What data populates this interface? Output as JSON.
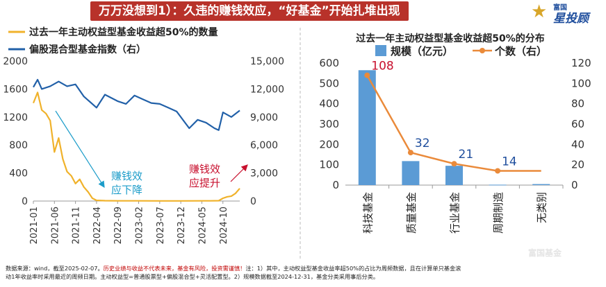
{
  "header": {
    "title": "万万没想到1）：久违的赚钱效应，“好基金”开始扎堆出现",
    "logo_line1": "富国",
    "logo_line2": "星投顾",
    "logo_icon": "star-icon"
  },
  "watermark": "富国基金",
  "colors": {
    "accent": "#b8322a",
    "gold": "#f0b22b",
    "navy": "#2160a8",
    "bar": "#5b9bd5",
    "line": "#ea8a3a",
    "annot_blue": "#1b9cc9",
    "annot_red": "#c8102e"
  },
  "chart_data": [
    {
      "type": "line",
      "title": "",
      "series": [
        {
          "name": "过去一年主动权益型基金收益超50%的数量",
          "axis": "left",
          "color": "#f0b22b",
          "x": [
            "2021-01",
            "2021-02",
            "2021-03",
            "2021-04",
            "2021-05",
            "2021-06",
            "2021-07",
            "2021-08",
            "2021-09",
            "2021-10",
            "2021-11",
            "2021-12",
            "2022-01",
            "2022-02",
            "2022-03",
            "2022-04",
            "2022-06",
            "2022-09",
            "2023-02",
            "2023-07",
            "2023-12",
            "2024-05",
            "2024-07",
            "2024-09",
            "2024-10",
            "2024-11",
            "2024-12",
            "2025-01",
            "2025-02"
          ],
          "values": [
            1400,
            1550,
            1300,
            1250,
            1150,
            700,
            900,
            600,
            420,
            360,
            250,
            310,
            200,
            130,
            40,
            10,
            5,
            3,
            3,
            2,
            2,
            3,
            3,
            5,
            40,
            60,
            70,
            110,
            180
          ]
        },
        {
          "name": "偏股混合型基金指数（右）",
          "axis": "right",
          "color": "#2160a8",
          "x": [
            "2021-01",
            "2021-02",
            "2021-03",
            "2021-05",
            "2021-07",
            "2021-09",
            "2021-11",
            "2022-01",
            "2022-04",
            "2022-06",
            "2022-09",
            "2022-11",
            "2023-01",
            "2023-03",
            "2023-05",
            "2023-07",
            "2023-09",
            "2023-11",
            "2024-01",
            "2024-02",
            "2024-04",
            "2024-06",
            "2024-08",
            "2024-09",
            "2024-10",
            "2024-12",
            "2025-02"
          ],
          "values": [
            12200,
            13000,
            12000,
            12300,
            12800,
            12300,
            12500,
            11200,
            10000,
            11400,
            10700,
            10400,
            11300,
            10900,
            10500,
            10400,
            10000,
            9600,
            8400,
            7800,
            8700,
            8400,
            7800,
            7600,
            9500,
            9000,
            9700
          ]
        }
      ],
      "x_ticks": [
        "2021-01",
        "2021-06",
        "2021-11",
        "2022-04",
        "2022-09",
        "2023-02",
        "2023-07",
        "2023-12",
        "2024-05",
        "2024-10"
      ],
      "y_left": {
        "ticks": [
          0,
          400,
          800,
          1200,
          1600,
          2000
        ],
        "ylim": [
          0,
          2000
        ]
      },
      "y_right": {
        "ticks": [
          0,
          3000,
          6000,
          9000,
          12000,
          15000
        ],
        "tick_labels": [
          "0",
          "3,000",
          "6,000",
          "9,000",
          "12,000",
          "15,000"
        ],
        "ylim": [
          0,
          15000
        ]
      },
      "annotations": [
        {
          "text": "赚钱效应下降",
          "line1": "赚钱效",
          "line2": "应下降",
          "color": "#1b9cc9"
        },
        {
          "text": "赚钱效应提升",
          "line1": "赚钱效",
          "line2": "应提升",
          "color": "#c8102e"
        }
      ],
      "legend_placement": "top-left",
      "grid": false
    },
    {
      "type": "bar",
      "title": "过去一年主动权益型基金收益超50%的分布",
      "categories": [
        "科技基金",
        "质量基金",
        "行业基金",
        "周期制造",
        "无类别"
      ],
      "series": [
        {
          "name": "规模（亿元）",
          "type": "bar",
          "axis": "left",
          "color": "#5b9bd5",
          "values": [
            565,
            118,
            95,
            2,
            5
          ]
        },
        {
          "name": "个数（右）",
          "type": "line",
          "axis": "right",
          "color": "#ea8a3a",
          "values": [
            108,
            32,
            21,
            14,
            14
          ]
        }
      ],
      "data_labels": [
        "108",
        "32",
        "21",
        "14"
      ],
      "y_left": {
        "ticks": [
          0,
          100,
          200,
          300,
          400,
          500,
          600
        ],
        "ylim": [
          0,
          600
        ]
      },
      "y_right": {
        "ticks": [
          0,
          20,
          40,
          60,
          80,
          100,
          120
        ],
        "ylim": [
          0,
          120
        ]
      },
      "legend_placement": "top",
      "grid": false
    }
  ],
  "footnote": {
    "line1_a": "数据来源：wind，截至2025-02-07。",
    "line1_red": "历史业绩与收益不代表未来，基金有风险，投资需谨慎！",
    "line1_b": "注：1）其中，主动权益型基金收益率超50%的占比为周频数据，且在计算单只基金滚",
    "line2": "动1年收益率时采用最近的周频日期。主动权益型=普通股票型+偏股混合型+灵活配置型。2）规模数据截至2024-12-31，基金分类采用事后分类。"
  }
}
